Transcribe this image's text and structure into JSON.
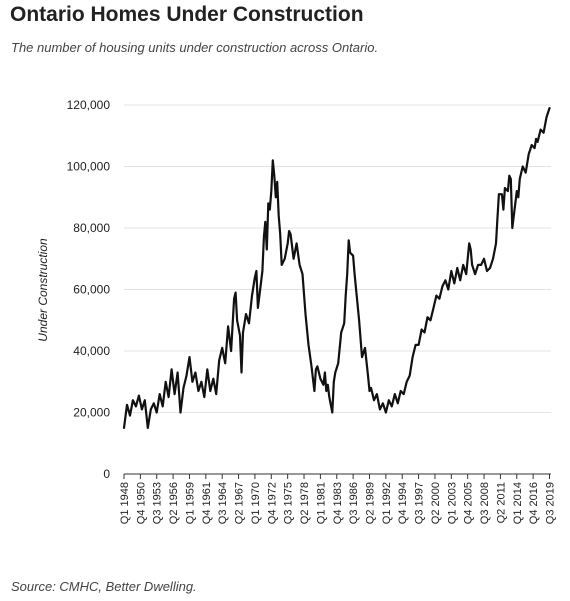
{
  "header": {
    "title": "Ontario Homes Under Construction",
    "subtitle": "The number of housing units under construction across Ontario."
  },
  "footer": {
    "source": "Source: CMHC, Better Dwelling."
  },
  "chart_data": {
    "type": "line",
    "title": "Ontario Homes Under Construction",
    "subtitle": "The number of housing units under construction across Ontario.",
    "xlabel": "",
    "ylabel": "Under Construction",
    "ylim": [
      0,
      120000
    ],
    "yticks": [
      0,
      20000,
      40000,
      60000,
      80000,
      100000,
      120000
    ],
    "ytick_labels": [
      "0",
      "20,000",
      "40,000",
      "60,000",
      "80,000",
      "100,000",
      "120,000"
    ],
    "xlim": [
      1948.0,
      2019.75
    ],
    "xticks": [
      1948.0,
      1950.75,
      1953.5,
      1956.25,
      1959.0,
      1961.75,
      1964.5,
      1967.25,
      1970.0,
      1972.75,
      1975.5,
      1978.25,
      1981.0,
      1983.75,
      1986.5,
      1989.25,
      1992.0,
      1994.75,
      1997.5,
      2000.25,
      2003.0,
      2005.75,
      2008.5,
      2011.25,
      2014.0,
      2016.75,
      2019.5
    ],
    "xtick_labels": [
      "Q1 1948",
      "Q4 1950",
      "Q3 1953",
      "Q2 1956",
      "Q1 1959",
      "Q4 1961",
      "Q3 1964",
      "Q2 1967",
      "Q1 1970",
      "Q4 1972",
      "Q3 1975",
      "Q2 1978",
      "Q1 1981",
      "Q4 1983",
      "Q3 1986",
      "Q2 1989",
      "Q1 1992",
      "Q4 1994",
      "Q3 1997",
      "Q2 2000",
      "Q1 2003",
      "Q4 2005",
      "Q3 2008",
      "Q2 2011",
      "Q1 2014",
      "Q4 2016",
      "Q3 2019"
    ],
    "grid": true,
    "legend": "none",
    "series": [
      {
        "color": "#111111",
        "points": [
          [
            1948.0,
            15000
          ],
          [
            1948.5,
            22500
          ],
          [
            1949.0,
            19000
          ],
          [
            1949.5,
            24000
          ],
          [
            1950.0,
            22000
          ],
          [
            1950.5,
            25500
          ],
          [
            1951.0,
            21000
          ],
          [
            1951.5,
            24000
          ],
          [
            1952.0,
            15000
          ],
          [
            1952.5,
            21000
          ],
          [
            1953.0,
            23000
          ],
          [
            1953.5,
            20000
          ],
          [
            1954.0,
            26000
          ],
          [
            1954.5,
            22000
          ],
          [
            1955.0,
            30000
          ],
          [
            1955.5,
            25000
          ],
          [
            1956.0,
            34000
          ],
          [
            1956.5,
            26000
          ],
          [
            1957.0,
            33000
          ],
          [
            1957.5,
            20000
          ],
          [
            1958.0,
            28000
          ],
          [
            1958.5,
            32000
          ],
          [
            1959.0,
            38000
          ],
          [
            1959.5,
            30000
          ],
          [
            1960.0,
            33000
          ],
          [
            1960.5,
            27000
          ],
          [
            1961.0,
            30000
          ],
          [
            1961.5,
            25000
          ],
          [
            1962.0,
            34000
          ],
          [
            1962.5,
            27000
          ],
          [
            1963.0,
            31000
          ],
          [
            1963.5,
            26000
          ],
          [
            1964.0,
            37000
          ],
          [
            1964.5,
            41000
          ],
          [
            1965.0,
            36000
          ],
          [
            1965.5,
            48000
          ],
          [
            1966.0,
            40000
          ],
          [
            1966.5,
            57000
          ],
          [
            1966.75,
            59000
          ],
          [
            1967.0,
            50000
          ],
          [
            1967.5,
            45000
          ],
          [
            1967.75,
            33000
          ],
          [
            1968.0,
            46000
          ],
          [
            1968.5,
            52000
          ],
          [
            1969.0,
            49000
          ],
          [
            1969.5,
            58000
          ],
          [
            1970.0,
            64000
          ],
          [
            1970.25,
            66000
          ],
          [
            1970.5,
            54000
          ],
          [
            1971.0,
            62000
          ],
          [
            1971.25,
            66000
          ],
          [
            1971.5,
            77000
          ],
          [
            1971.75,
            82000
          ],
          [
            1972.0,
            73000
          ],
          [
            1972.25,
            88000
          ],
          [
            1972.5,
            86000
          ],
          [
            1972.75,
            92000
          ],
          [
            1973.0,
            102000
          ],
          [
            1973.25,
            97000
          ],
          [
            1973.5,
            90000
          ],
          [
            1973.75,
            95000
          ],
          [
            1974.0,
            84000
          ],
          [
            1974.25,
            78000
          ],
          [
            1974.5,
            68000
          ],
          [
            1975.0,
            70000
          ],
          [
            1975.5,
            75000
          ],
          [
            1975.75,
            79000
          ],
          [
            1976.0,
            78000
          ],
          [
            1976.5,
            70000
          ],
          [
            1977.0,
            75000
          ],
          [
            1977.5,
            68000
          ],
          [
            1978.0,
            65000
          ],
          [
            1978.5,
            52000
          ],
          [
            1979.0,
            42000
          ],
          [
            1979.5,
            35000
          ],
          [
            1980.0,
            27000
          ],
          [
            1980.25,
            34000
          ],
          [
            1980.5,
            35000
          ],
          [
            1981.0,
            31000
          ],
          [
            1981.5,
            29000
          ],
          [
            1981.75,
            33000
          ],
          [
            1982.0,
            27000
          ],
          [
            1982.25,
            29000
          ],
          [
            1982.5,
            25000
          ],
          [
            1983.0,
            20000
          ],
          [
            1983.25,
            30000
          ],
          [
            1983.5,
            33000
          ],
          [
            1984.0,
            36000
          ],
          [
            1984.5,
            46000
          ],
          [
            1985.0,
            49000
          ],
          [
            1985.25,
            58000
          ],
          [
            1985.5,
            65000
          ],
          [
            1985.75,
            76000
          ],
          [
            1986.0,
            72000
          ],
          [
            1986.5,
            71000
          ],
          [
            1986.75,
            65000
          ],
          [
            1987.0,
            60000
          ],
          [
            1987.5,
            50000
          ],
          [
            1988.0,
            38000
          ],
          [
            1988.5,
            41000
          ],
          [
            1989.0,
            32000
          ],
          [
            1989.25,
            27000
          ],
          [
            1989.5,
            28000
          ],
          [
            1990.0,
            24000
          ],
          [
            1990.5,
            26000
          ],
          [
            1991.0,
            21000
          ],
          [
            1991.5,
            23000
          ],
          [
            1992.0,
            20000
          ],
          [
            1992.5,
            24000
          ],
          [
            1993.0,
            22000
          ],
          [
            1993.5,
            26000
          ],
          [
            1994.0,
            23000
          ],
          [
            1994.5,
            27000
          ],
          [
            1995.0,
            26000
          ],
          [
            1995.5,
            30000
          ],
          [
            1996.0,
            32000
          ],
          [
            1996.5,
            38000
          ],
          [
            1997.0,
            42000
          ],
          [
            1997.5,
            42000
          ],
          [
            1998.0,
            47000
          ],
          [
            1998.5,
            46000
          ],
          [
            1999.0,
            51000
          ],
          [
            1999.5,
            50000
          ],
          [
            2000.0,
            54000
          ],
          [
            2000.5,
            58000
          ],
          [
            2001.0,
            57000
          ],
          [
            2001.5,
            61000
          ],
          [
            2002.0,
            63000
          ],
          [
            2002.5,
            60000
          ],
          [
            2003.0,
            66000
          ],
          [
            2003.5,
            62000
          ],
          [
            2004.0,
            67000
          ],
          [
            2004.5,
            63000
          ],
          [
            2005.0,
            68000
          ],
          [
            2005.5,
            65000
          ],
          [
            2006.0,
            75000
          ],
          [
            2006.25,
            73000
          ],
          [
            2006.5,
            68000
          ],
          [
            2007.0,
            65000
          ],
          [
            2007.5,
            68000
          ],
          [
            2008.0,
            68000
          ],
          [
            2008.5,
            70000
          ],
          [
            2009.0,
            66000
          ],
          [
            2009.5,
            67000
          ],
          [
            2010.0,
            70000
          ],
          [
            2010.5,
            75000
          ],
          [
            2010.75,
            83000
          ],
          [
            2011.0,
            91000
          ],
          [
            2011.5,
            91000
          ],
          [
            2011.75,
            86000
          ],
          [
            2012.0,
            93000
          ],
          [
            2012.5,
            92000
          ],
          [
            2012.75,
            97000
          ],
          [
            2013.0,
            96000
          ],
          [
            2013.25,
            80000
          ],
          [
            2013.5,
            84000
          ],
          [
            2014.0,
            92000
          ],
          [
            2014.25,
            90000
          ],
          [
            2014.5,
            96000
          ],
          [
            2015.0,
            100000
          ],
          [
            2015.5,
            98000
          ],
          [
            2016.0,
            104000
          ],
          [
            2016.5,
            107000
          ],
          [
            2017.0,
            106000
          ],
          [
            2017.25,
            109000
          ],
          [
            2017.5,
            108000
          ],
          [
            2018.0,
            112000
          ],
          [
            2018.5,
            111000
          ],
          [
            2019.0,
            116000
          ],
          [
            2019.5,
            119000
          ]
        ]
      }
    ]
  }
}
